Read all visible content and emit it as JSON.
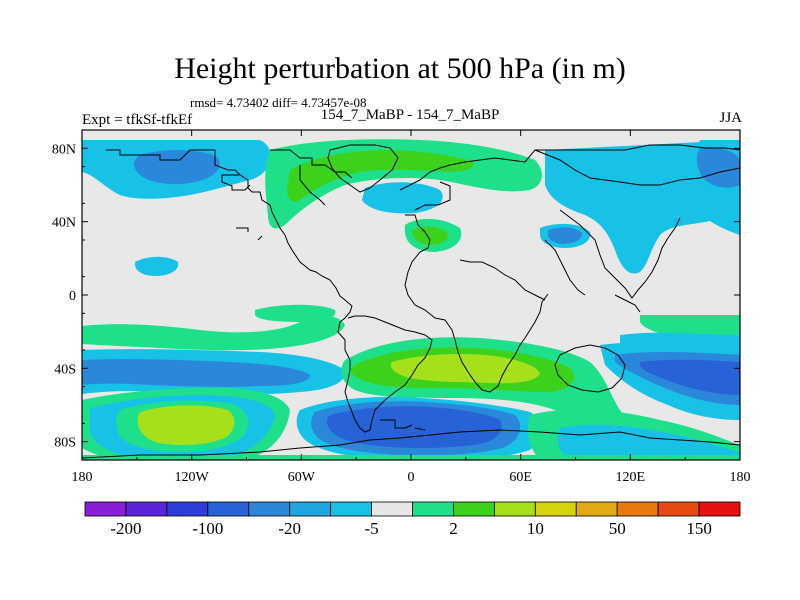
{
  "header": {
    "title": "Height perturbation at 500 hPa (in m)",
    "stats": "rmsd= 4.73402 diff= 4.73457e-08",
    "expt": "Expt = tfkSf-tfkEf",
    "runs": "154_7_MaBP - 154_7_MaBP",
    "season": "JJA"
  },
  "axes": {
    "lat_labels": [
      "80N",
      "40N",
      "0",
      "40S",
      "80S"
    ],
    "lon_labels": [
      "180",
      "120W",
      "60W",
      "0",
      "60E",
      "120E",
      "180"
    ]
  },
  "colorbar": {
    "labels": [
      "-200",
      "-100",
      "-20",
      "-5",
      "2",
      "10",
      "50",
      "150"
    ],
    "colors": [
      "#8a1dd6",
      "#5a25d9",
      "#2e3fd9",
      "#2763d6",
      "#2a87d9",
      "#1fa6e0",
      "#18c2e6",
      "#e6e6e6",
      "#1fe08a",
      "#3cd21c",
      "#a6e01a",
      "#d6d20e",
      "#e2aa12",
      "#e6780e",
      "#e64a10",
      "#e61010"
    ]
  },
  "map_colors": {
    "background": "#e8e8e8",
    "light_blue": "#18c2e6",
    "mid_blue": "#2a87d9",
    "dark_blue": "#2763d6",
    "green": "#1fe08a",
    "bright_green": "#3cd21c",
    "yellow_green": "#a6e01a",
    "coast": "#000000"
  }
}
